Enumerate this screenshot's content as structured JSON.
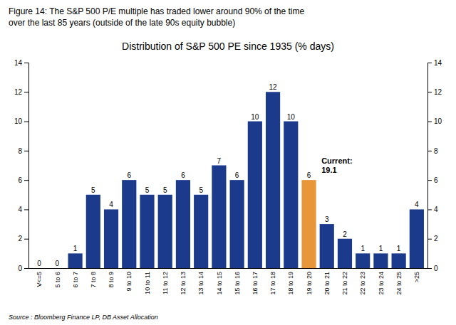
{
  "chart_data": {
    "type": "bar",
    "title": "Distribution of S&P 500 PE since 1935 (% days)",
    "subtitle": [
      "Figure 14: The S&P 500 P/E multiple has traded lower around 90% of the time",
      "over the last 85 years (outside of the late 90s equity bubble)"
    ],
    "source": "Source : Bloomberg Finance LP, DB Asset Allocation",
    "categories": [
      "V<=5",
      "5 to 6",
      "6 to 7",
      "7 to 8",
      "8 to 9",
      "9 to 10",
      "10 to 11",
      "11 to 12",
      "12 to 13",
      "13 to 14",
      "14 to 15",
      "15 to 16",
      "16 to 17",
      "17 to 18",
      "18 to 19",
      "19 to 20",
      "20 to 21",
      "21 to 22",
      "22 to 23",
      "23 to 24",
      "24 to 25",
      ">25"
    ],
    "values": [
      0,
      0,
      1,
      5,
      4,
      6,
      5,
      5,
      6,
      5,
      7,
      6,
      10,
      12,
      10,
      6,
      3,
      2,
      1,
      1,
      1,
      4
    ],
    "colors": [
      "#1c3a8c",
      "#1c3a8c",
      "#1c3a8c",
      "#1c3a8c",
      "#1c3a8c",
      "#1c3a8c",
      "#1c3a8c",
      "#1c3a8c",
      "#1c3a8c",
      "#1c3a8c",
      "#1c3a8c",
      "#1c3a8c",
      "#1c3a8c",
      "#1c3a8c",
      "#1c3a8c",
      "#e8963a",
      "#1c3a8c",
      "#1c3a8c",
      "#1c3a8c",
      "#1c3a8c",
      "#1c3a8c",
      "#1c3a8c"
    ],
    "annotations": [
      {
        "text": "Current:\n19.1",
        "category": "19 to 20"
      }
    ],
    "data_labels": true,
    "grid": false,
    "ylim": [
      0,
      14
    ],
    "yticks": [
      0,
      2,
      4,
      6,
      8,
      10,
      12,
      14
    ],
    "y2lim": [
      0,
      14
    ],
    "y2ticks": [
      0,
      2,
      4,
      6,
      8,
      10,
      12,
      14
    ]
  }
}
